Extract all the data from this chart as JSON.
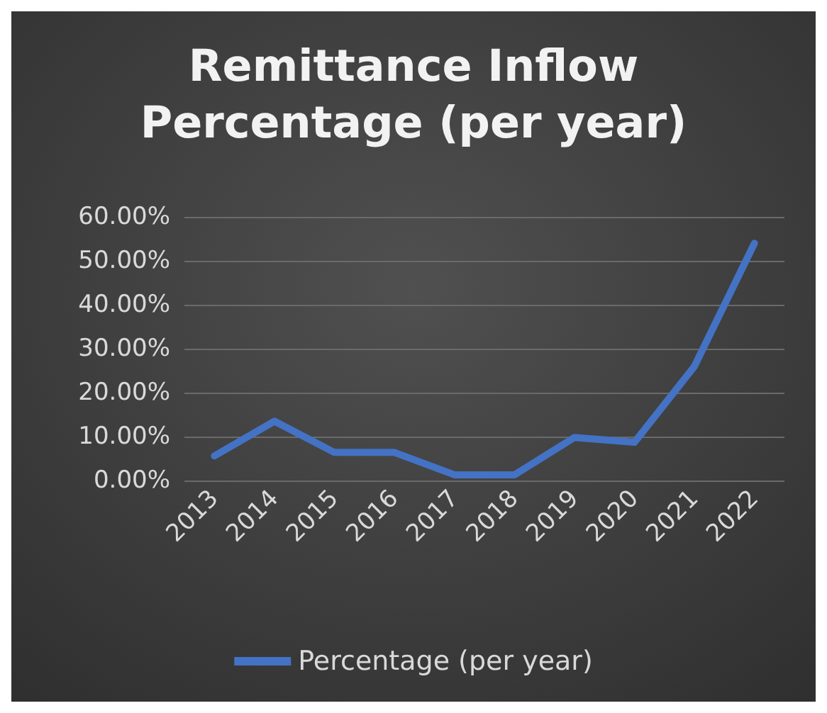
{
  "chart_data": {
    "type": "line",
    "title": "Remittance Inflow\nPercentage (per year)",
    "categories": [
      "2013",
      "2014",
      "2015",
      "2016",
      "2017",
      "2018",
      "2019",
      "2020",
      "2021",
      "2022"
    ],
    "series": [
      {
        "name": "Percentage (per year)",
        "color": "#4472c4",
        "values": [
          5.6,
          13.5,
          6.4,
          6.4,
          1.3,
          1.3,
          9.8,
          8.7,
          26,
          54
        ]
      }
    ],
    "ylim": [
      0,
      60
    ],
    "yticks": [
      {
        "value": 0,
        "label": "0.00%"
      },
      {
        "value": 10,
        "label": "10.00%"
      },
      {
        "value": 20,
        "label": "20.00%"
      },
      {
        "value": 30,
        "label": "30.00%"
      },
      {
        "value": 40,
        "label": "40.00%"
      },
      {
        "value": 50,
        "label": "50.00%"
      },
      {
        "value": 60,
        "label": "60.00%"
      }
    ],
    "grid": "y",
    "legend": "bottom",
    "marker": "none",
    "line_style": "solid"
  }
}
